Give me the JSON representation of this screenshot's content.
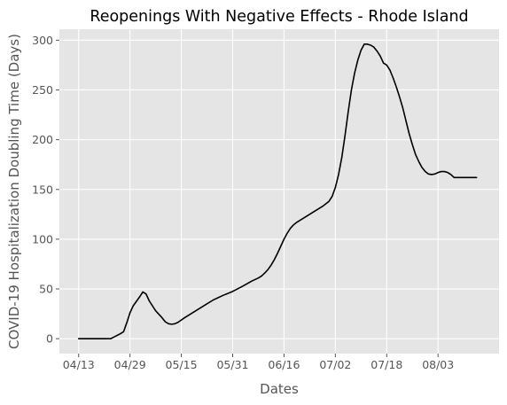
{
  "chart_data": {
    "type": "line",
    "title": "Reopenings With Negative Effects - Rhode Island",
    "xlabel": "Dates",
    "ylabel": "COVID-19 Hospitalization Doubling Time (Days)",
    "x_tick_labels": [
      "04/13",
      "04/29",
      "05/15",
      "05/31",
      "06/16",
      "07/02",
      "07/18",
      "08/03"
    ],
    "x_tick_days": [
      0,
      16,
      32,
      48,
      64,
      80,
      96,
      112
    ],
    "xlim": [
      -6,
      131
    ],
    "y_ticks": [
      0,
      50,
      100,
      150,
      200,
      250,
      300
    ],
    "ylim": [
      -15,
      311
    ],
    "grid": true,
    "series": [
      {
        "color": "#000000",
        "x": [
          0,
          3,
          7,
          10,
          13,
          14,
          15,
          16,
          17,
          19,
          20,
          21,
          22,
          24,
          26,
          27,
          28,
          29,
          30,
          31,
          33,
          36,
          39,
          42,
          45,
          48,
          51,
          54,
          56,
          57,
          58,
          59,
          60,
          61,
          62,
          63,
          64,
          65,
          66,
          67,
          68,
          70,
          73,
          76,
          78,
          79,
          80,
          81,
          82,
          83,
          84,
          85,
          86,
          87,
          88,
          89,
          90,
          91,
          92,
          93,
          94,
          95,
          96,
          97,
          98,
          99,
          100,
          101,
          102,
          103,
          104,
          105,
          106,
          107,
          108,
          109,
          110,
          111,
          112,
          113,
          114,
          115,
          116,
          117,
          118,
          119,
          120,
          121,
          122,
          123,
          124
        ],
        "y": [
          0,
          0,
          0,
          0,
          5,
          7,
          16,
          26,
          33,
          42,
          47,
          45,
          38,
          28,
          21,
          17,
          15,
          14.5,
          15,
          16.5,
          21,
          27,
          33,
          39,
          43.5,
          47.5,
          52.5,
          58,
          61,
          63,
          66,
          69.5,
          74,
          79.5,
          86,
          93,
          100,
          106,
          111,
          114.5,
          117,
          121,
          127,
          133,
          138,
          143,
          152,
          165,
          182,
          204,
          228,
          250,
          267,
          280,
          290,
          296,
          296,
          295,
          293,
          289,
          284,
          277,
          275,
          270,
          262,
          253,
          243,
          232,
          219,
          206,
          195,
          185,
          178,
          172,
          168,
          165.5,
          165,
          165.5,
          167,
          168,
          168,
          167,
          165,
          162,
          162,
          162,
          162,
          162,
          162,
          162,
          162
        ]
      }
    ]
  }
}
